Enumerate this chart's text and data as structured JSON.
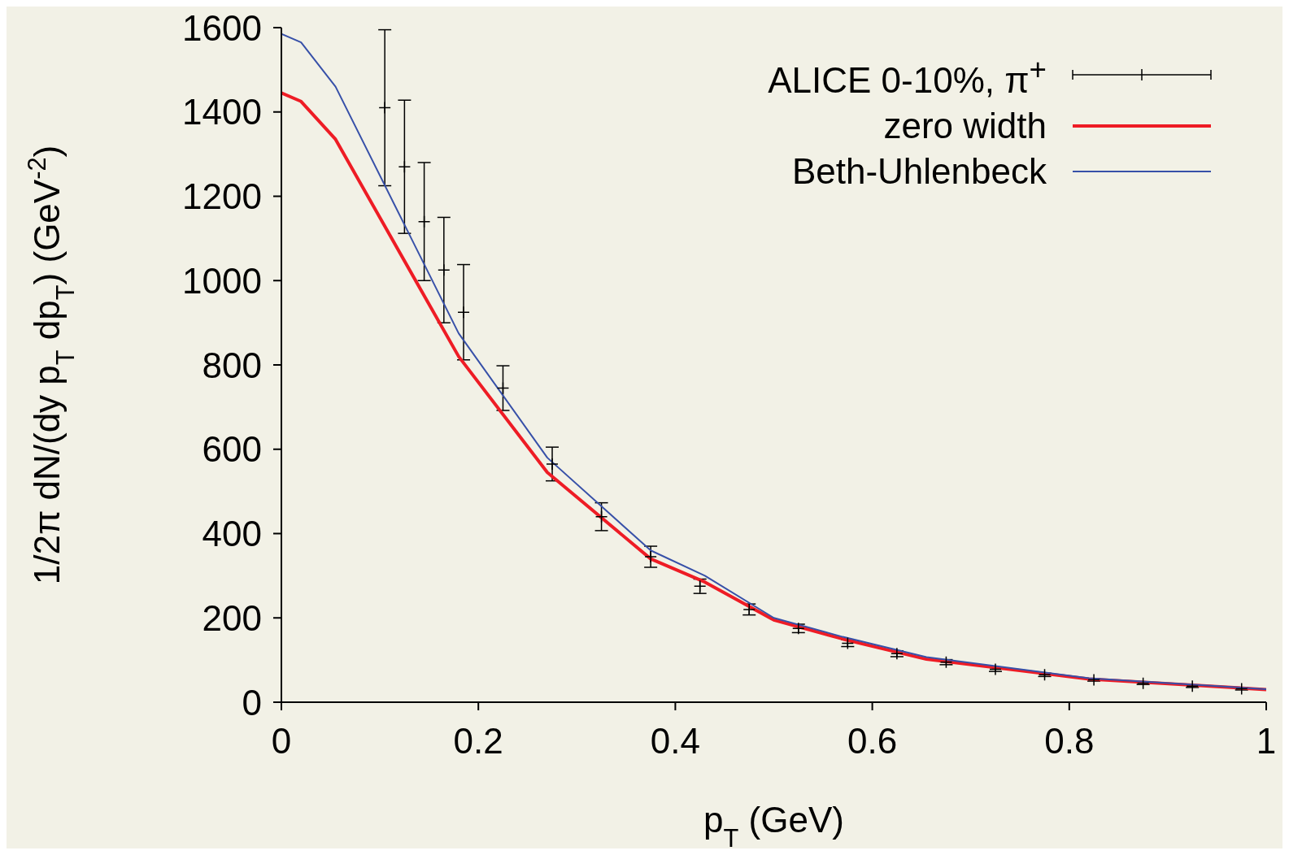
{
  "chart_data": {
    "type": "line",
    "xlabel": "p$_{T}$ (GeV)",
    "ylabel": "1/2π dN/(dy p$_{T}$ dp$_{T}$) (GeV$^{-2}$)",
    "xlim": [
      0,
      1
    ],
    "xticks": [
      0,
      0.2,
      0.4,
      0.6,
      0.8,
      1
    ],
    "ylim": [
      0,
      1600
    ],
    "yticks": [
      0,
      200,
      400,
      600,
      800,
      1000,
      1200,
      1400,
      1600
    ],
    "grid": false,
    "legend": "top right",
    "series": [
      {
        "name": "ALICE 0-10%, π$^{+}$",
        "type": "scatter",
        "color": "#000000",
        "marker": "cross",
        "x": [
          0.105,
          0.125,
          0.145,
          0.165,
          0.185,
          0.225,
          0.275,
          0.325,
          0.375,
          0.425,
          0.475,
          0.525,
          0.575,
          0.625,
          0.675,
          0.725,
          0.775,
          0.825,
          0.875,
          0.925,
          0.975
        ],
        "values": [
          1410,
          1270,
          1140,
          1025,
          925,
          745,
          565,
          440,
          345,
          275,
          220,
          175,
          140,
          115,
          95,
          78,
          65,
          53,
          45,
          38,
          32
        ],
        "errors": [
          185,
          158,
          140,
          125,
          113,
          53,
          40,
          33,
          25,
          17,
          13,
          10,
          8,
          7,
          6,
          5,
          4,
          3,
          3,
          3,
          3
        ]
      },
      {
        "name": "zero width",
        "color": "#ee1c25",
        "x": [
          0,
          0.02,
          0.055,
          0.18,
          0.27,
          0.375,
          0.43,
          0.5,
          0.57,
          0.655,
          0.82,
          1
        ],
        "values": [
          1445,
          1425,
          1335,
          820,
          545,
          340,
          285,
          195,
          150,
          102,
          55,
          30
        ]
      },
      {
        "name": "Beth-Uhlenbeck",
        "color": "#3750a8",
        "x": [
          0,
          0.02,
          0.055,
          0.18,
          0.27,
          0.375,
          0.43,
          0.5,
          0.57,
          0.655,
          0.82,
          1
        ],
        "values": [
          1585,
          1565,
          1460,
          875,
          580,
          360,
          300,
          200,
          155,
          107,
          57,
          31
        ]
      }
    ]
  }
}
